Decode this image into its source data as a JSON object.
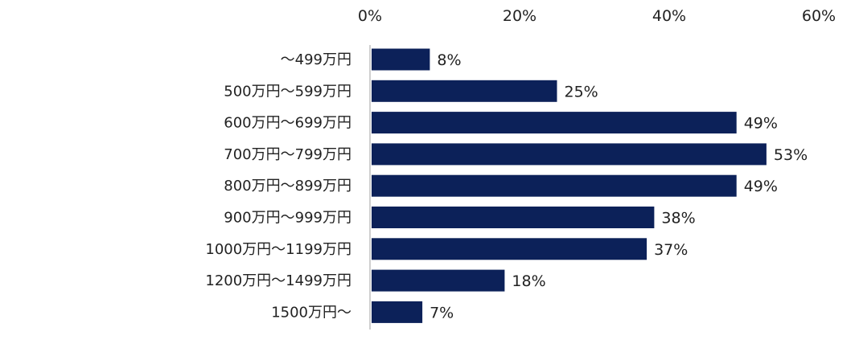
{
  "chart_data": {
    "type": "bar",
    "orientation": "horizontal",
    "categories": [
      "～499万円",
      "500万円～599万円",
      "600万円～699万円",
      "700万円～799万円",
      "800万円～899万円",
      "900万円～999万円",
      "1000万円～1199万円",
      "1200万円～1499万円",
      "1500万円～"
    ],
    "values": [
      8,
      25,
      49,
      53,
      49,
      38,
      37,
      18,
      7
    ],
    "value_labels": [
      "8%",
      "25%",
      "49%",
      "53%",
      "49%",
      "38%",
      "37%",
      "18%",
      "7%"
    ],
    "xlim": [
      0,
      60
    ],
    "xticks": [
      0,
      20,
      40,
      60
    ],
    "xtick_labels": [
      "0%",
      "20%",
      "40%",
      "60%"
    ],
    "axis_position": "top",
    "grid": false,
    "legend": "none",
    "title": "",
    "xlabel": "",
    "ylabel": "",
    "colors": {
      "bar": "#0c2159",
      "axis": "#bfbfbf",
      "text": "#222222"
    }
  }
}
